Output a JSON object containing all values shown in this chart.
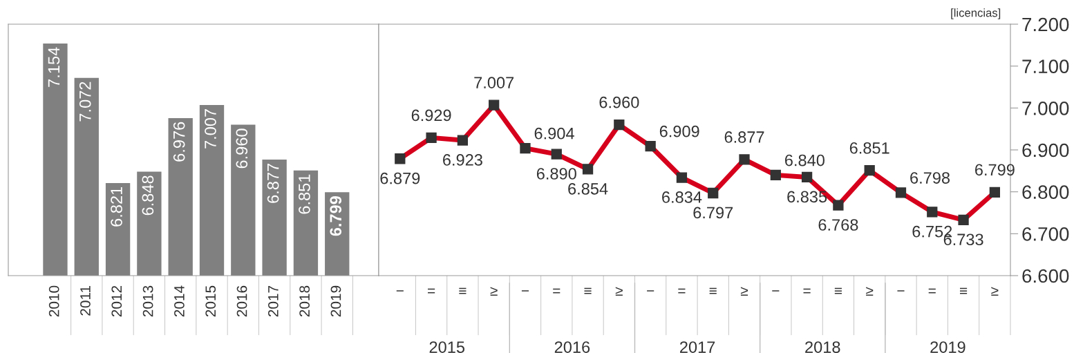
{
  "chart_data": [
    {
      "type": "bar",
      "categories": [
        "2010",
        "2011",
        "2012",
        "2013",
        "2014",
        "2015",
        "2016",
        "2017",
        "2018",
        "2019"
      ],
      "values": [
        7154,
        7072,
        6821,
        6848,
        6976,
        7007,
        6960,
        6877,
        6851,
        6799
      ],
      "value_labels": [
        "7.154",
        "7.072",
        "6.821",
        "6.848",
        "6.976",
        "7.007",
        "6.960",
        "6.877",
        "6.851",
        "6.799"
      ],
      "color": "#808080",
      "ylim": [
        6600,
        7200
      ],
      "tick_labels": "x",
      "grid": false,
      "legend": false
    },
    {
      "type": "line",
      "categories": [
        "−",
        "=",
        "≡",
        "≥",
        "−",
        "=",
        "≡",
        "≥",
        "−",
        "=",
        "≡",
        "≥",
        "−",
        "=",
        "≡",
        "≥",
        "−",
        "=",
        "≡",
        "≥"
      ],
      "series": [
        {
          "color": "#d7001c",
          "values": [
            6879,
            6929,
            6923,
            7007,
            6904,
            6890,
            6854,
            6960,
            6909,
            6834,
            6797,
            6877,
            6840,
            6835,
            6768,
            6851,
            6798,
            6752,
            6733,
            6799
          ],
          "value_labels": [
            "6.879",
            "6.929",
            "6.923",
            "7.007",
            "6.904",
            "6.890",
            "6.854",
            "6.960",
            "6.909",
            "6.834",
            "6.797",
            "6.877",
            "6.840",
            "6.835",
            "6.768",
            "6.851",
            "6.798",
            "6.752",
            "6.733",
            "6.799"
          ]
        }
      ],
      "marker": "square",
      "line_style": "solid",
      "ylim": [
        6600,
        7200
      ],
      "yticks": [
        {
          "value": 6600,
          "label": "6.600"
        },
        {
          "value": 6700,
          "label": "6.700"
        },
        {
          "value": 6800,
          "label": "6.800"
        },
        {
          "value": 6900,
          "label": "6.900"
        },
        {
          "value": 7000,
          "label": "7.000"
        },
        {
          "value": 7100,
          "label": "7.100"
        },
        {
          "value": 7200,
          "label": "7.200"
        }
      ],
      "annotations": [
        "[licencias]",
        "2015",
        "2016",
        "2017",
        "2018",
        "2019"
      ],
      "grid": false,
      "legend": false
    }
  ]
}
